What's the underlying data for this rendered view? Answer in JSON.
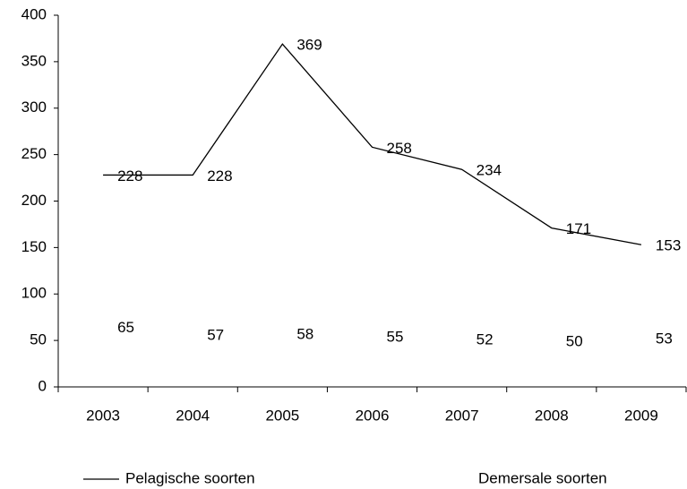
{
  "chart_data": {
    "type": "line",
    "categories": [
      "2003",
      "2004",
      "2005",
      "2006",
      "2007",
      "2008",
      "2009"
    ],
    "series": [
      {
        "name": "Pelagische soorten",
        "color": "#000000",
        "values": [
          228,
          228,
          369,
          258,
          234,
          171,
          153
        ]
      },
      {
        "name": "Demersale soorten",
        "color": "#ffffff",
        "values": [
          65,
          57,
          58,
          55,
          52,
          50,
          53
        ]
      }
    ],
    "ylim": [
      0,
      400
    ],
    "yticks": [
      0,
      50,
      100,
      150,
      200,
      250,
      300,
      350,
      400
    ],
    "grid": false,
    "legend": "bottom"
  }
}
